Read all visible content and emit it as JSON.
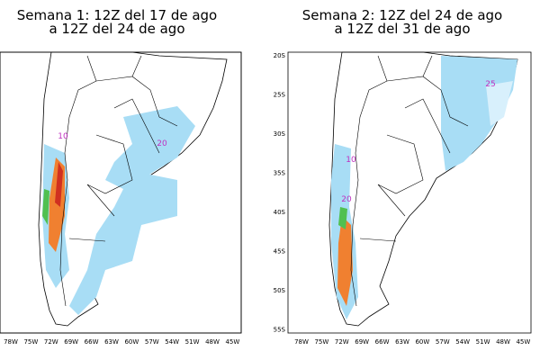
{
  "panels": [
    {
      "title": [
        "Semana 1: 12Z del 17 de ago",
        "a 12Z del 24 de ago"
      ],
      "lon_labels": [
        "78W",
        "75W",
        "72W",
        "69W",
        "66W",
        "63W",
        "60W",
        "57W",
        "54W",
        "51W",
        "48W",
        "45W"
      ],
      "lat_labels": [],
      "contour_labels": [
        "10",
        "20"
      ]
    },
    {
      "title": [
        "Semana 2: 12Z del 24 de ago",
        "a 12Z del 31 de ago"
      ],
      "lon_labels": [
        "78W",
        "75W",
        "72W",
        "69W",
        "66W",
        "63W",
        "60W",
        "57W",
        "54W",
        "51W",
        "48W",
        "45W"
      ],
      "lat_labels": [
        "20S",
        "25S",
        "30S",
        "35S",
        "40S",
        "45S",
        "50S",
        "55S"
      ],
      "contour_labels": [
        "25",
        "10",
        "20"
      ]
    }
  ]
}
